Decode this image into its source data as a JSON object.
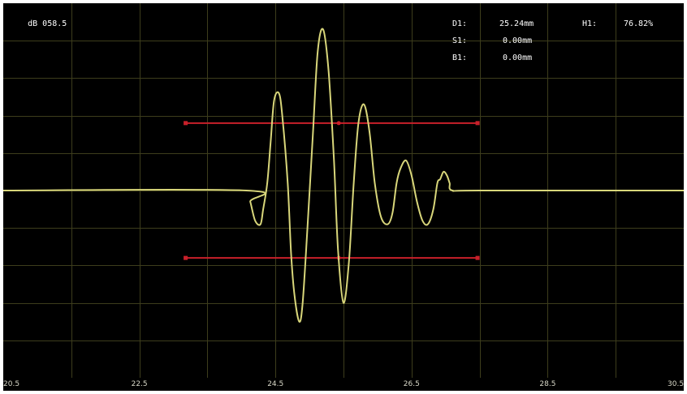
{
  "gain": {
    "label": "dB",
    "value": "058.5"
  },
  "readouts": [
    {
      "label": "D1:",
      "value": "25.24mm"
    },
    {
      "label": "S1:",
      "value": "0.00mm"
    },
    {
      "label": "B1:",
      "value": "0.00mm"
    }
  ],
  "amplitude_readout": {
    "label": "H1:",
    "value": "76.82%"
  },
  "x_axis": {
    "range": [
      20.5,
      30.5
    ],
    "tick_labels": [
      "20.5",
      "22.5",
      "24.5",
      "26.5",
      "28.5",
      "30.5"
    ]
  },
  "grid": {
    "on": true,
    "vertical_divisions": 10,
    "horizontal_divisions": 10
  },
  "gates": [
    {
      "name": "gate-a",
      "start": 23.18,
      "end": 27.47,
      "level_percent": 68,
      "marker": 25.43
    },
    {
      "name": "gate-b",
      "start": 23.18,
      "end": 27.47,
      "level_percent": 32,
      "marker": 25.43
    }
  ],
  "colors": {
    "background": "#000000",
    "grid": "#3d3d1c",
    "waveform": "#d8d67a",
    "gate": "#c8202a",
    "text": "#ffffff"
  },
  "chart_data": {
    "type": "line",
    "xlim": [
      20.5,
      30.5
    ],
    "ylim": [
      0,
      100
    ],
    "baseline": 50,
    "series": [
      {
        "x": [
          20.5,
          24.07,
          24.13,
          24.2,
          24.28,
          24.32,
          24.38,
          24.43,
          24.48,
          24.55,
          24.6,
          24.68,
          24.73,
          24.78,
          24.85,
          24.9,
          24.97,
          25.05,
          25.12,
          25.2,
          25.28,
          25.36,
          25.42,
          25.5,
          25.58,
          25.65,
          25.72,
          25.8,
          25.88,
          25.96,
          26.05,
          26.15,
          26.22,
          26.28,
          26.34,
          26.42,
          26.5,
          26.58,
          26.66,
          26.74,
          26.82,
          26.88,
          26.92,
          26.97,
          27.02,
          27.06,
          27.1,
          27.5,
          30.5
        ],
        "y": [
          50,
          50,
          47,
          42,
          41,
          45,
          52,
          63,
          74,
          76,
          70,
          52,
          33,
          22,
          15,
          20,
          40,
          65,
          87,
          93,
          82,
          58,
          34,
          20,
          31,
          52,
          68,
          73,
          66,
          52,
          43,
          41,
          44,
          52,
          56,
          58,
          54,
          47,
          42,
          41,
          45,
          52,
          53,
          55,
          54,
          52,
          50,
          50,
          50
        ]
      }
    ]
  }
}
